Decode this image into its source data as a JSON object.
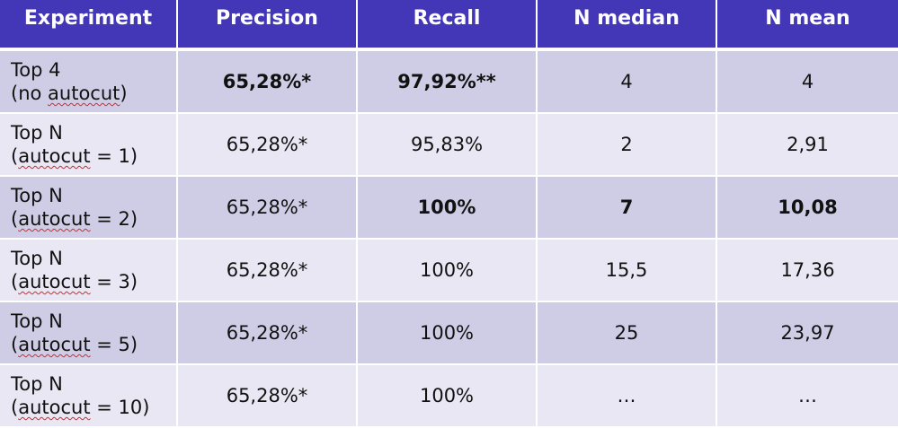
{
  "table": {
    "headers": [
      "Experiment",
      "Precision",
      "Recall",
      "N median",
      "N mean"
    ],
    "rows": [
      {
        "experiment_line1": "Top 4",
        "experiment_line2_prefix": "(no ",
        "experiment_line2_word": "autocut",
        "experiment_line2_suffix": ")",
        "precision": "65,28%*",
        "recall": "97,92%**",
        "n_median": "4",
        "n_mean": "4"
      },
      {
        "experiment_line1": "Top N",
        "experiment_line2_prefix": "(",
        "experiment_line2_word": "autocut",
        "experiment_line2_suffix": " = 1)",
        "precision": "65,28%*",
        "recall": "95,83%",
        "n_median": "2",
        "n_mean": "2,91"
      },
      {
        "experiment_line1": "Top N",
        "experiment_line2_prefix": "(",
        "experiment_line2_word": "autocut",
        "experiment_line2_suffix": " = 2)",
        "precision": "65,28%*",
        "recall": "100%",
        "n_median": "7",
        "n_mean": "10,08"
      },
      {
        "experiment_line1": "Top N",
        "experiment_line2_prefix": "(",
        "experiment_line2_word": "autocut",
        "experiment_line2_suffix": " = 3)",
        "precision": "65,28%*",
        "recall": "100%",
        "n_median": "15,5",
        "n_mean": "17,36"
      },
      {
        "experiment_line1": "Top N",
        "experiment_line2_prefix": "(",
        "experiment_line2_word": "autocut",
        "experiment_line2_suffix": " = 5)",
        "precision": "65,28%*",
        "recall": "100%",
        "n_median": "25",
        "n_mean": "23,97"
      },
      {
        "experiment_line1": "Top N",
        "experiment_line2_prefix": "(",
        "experiment_line2_word": "autocut",
        "experiment_line2_suffix": " = 10)",
        "precision": "65,28%*",
        "recall": "100%",
        "n_median": "…",
        "n_mean": "…"
      }
    ]
  }
}
